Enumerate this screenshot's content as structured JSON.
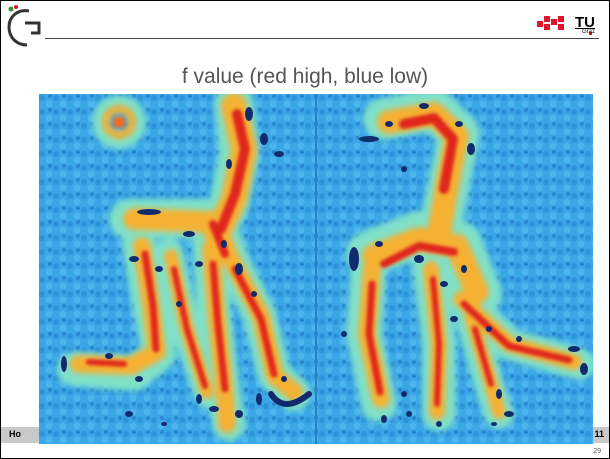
{
  "slide": {
    "title": "f value (red high, blue low)",
    "footer_left": "Ho",
    "footer_right": "11",
    "page_number": "29"
  },
  "logos": {
    "left": "graz-g-logo",
    "right_text": "TU",
    "right_subtext": "Graz"
  },
  "colors": {
    "blue_background": "#3aa6e6",
    "red_high": "#e0271a",
    "dark_blue_low": "#102a6e",
    "tu_red": "#e4142c"
  }
}
